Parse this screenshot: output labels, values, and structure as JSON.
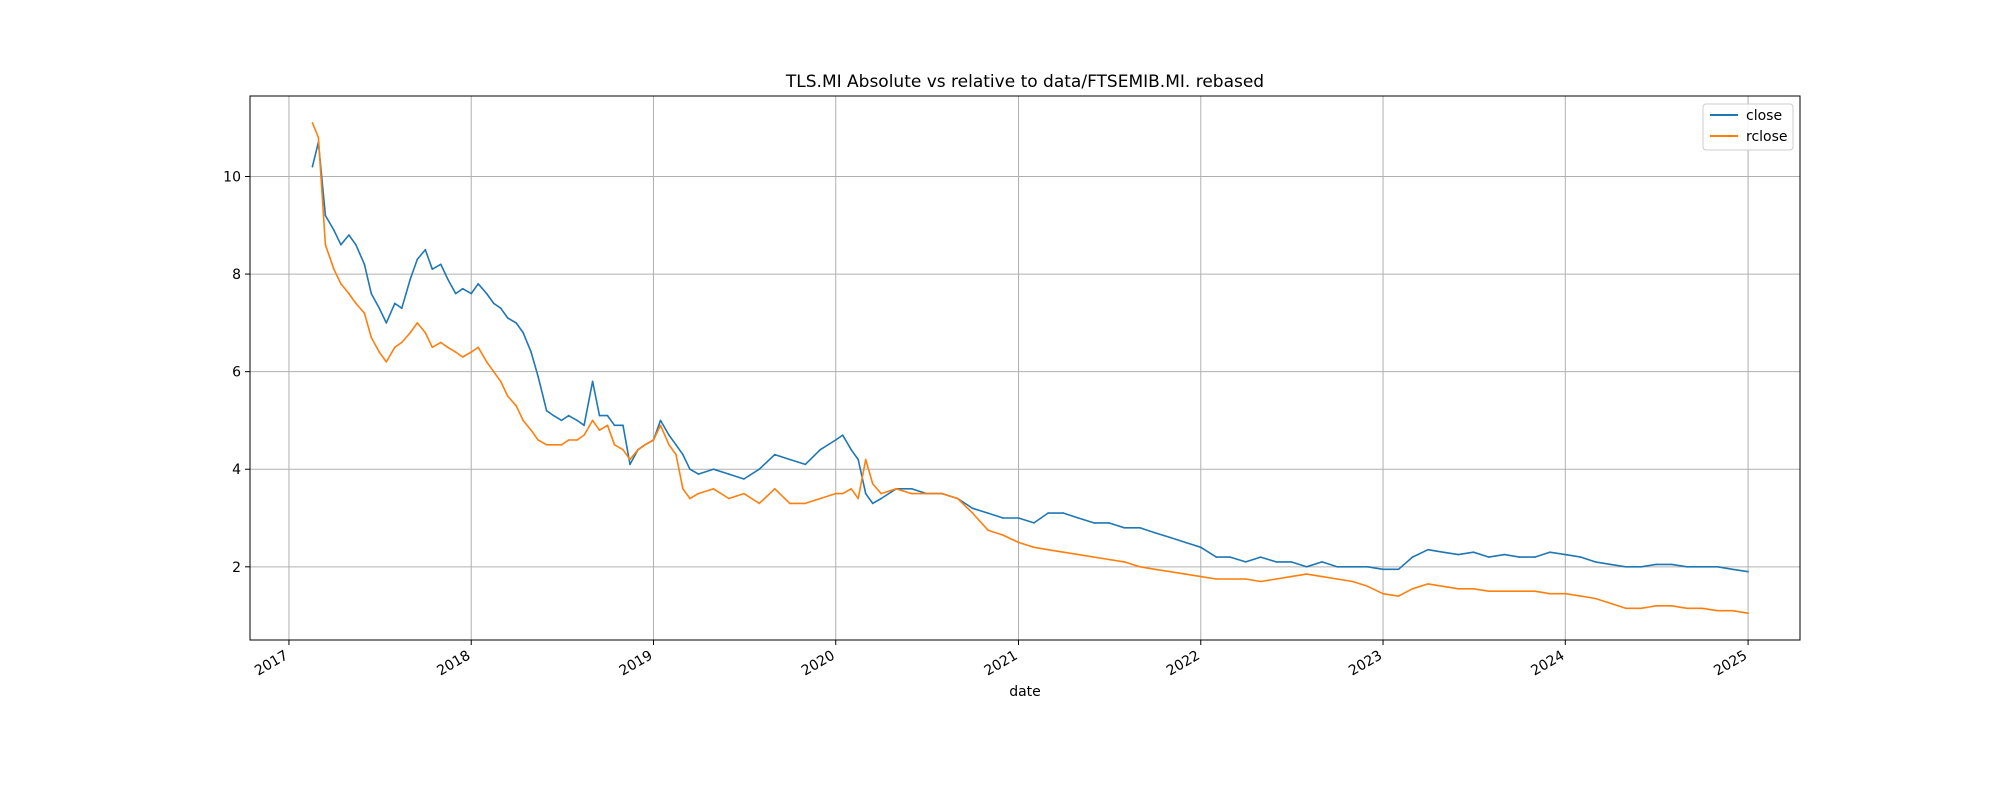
{
  "chart_data": {
    "type": "line",
    "title": "TLS.MI Absolute vs relative to data/FTSEMIB.MI. rebased",
    "xlabel": "date",
    "ylabel": "",
    "xlim": [
      "2016-10-15",
      "2025-04-15"
    ],
    "ylim": [
      0.5,
      11.65
    ],
    "grid": true,
    "legend_position": "top-right",
    "x_ticks": [
      "2017",
      "2018",
      "2019",
      "2020",
      "2021",
      "2022",
      "2023",
      "2024",
      "2025"
    ],
    "y_ticks": [
      "2",
      "4",
      "6",
      "8",
      "10"
    ],
    "y_tick_values": [
      2,
      4,
      6,
      8,
      10
    ],
    "x": [
      "2017-02-17",
      "2017-03-01",
      "2017-03-15",
      "2017-04-01",
      "2017-04-15",
      "2017-05-01",
      "2017-05-15",
      "2017-06-01",
      "2017-06-15",
      "2017-07-01",
      "2017-07-15",
      "2017-08-01",
      "2017-08-15",
      "2017-09-01",
      "2017-09-15",
      "2017-10-01",
      "2017-10-15",
      "2017-11-01",
      "2017-11-15",
      "2017-12-01",
      "2017-12-15",
      "2018-01-01",
      "2018-01-15",
      "2018-02-01",
      "2018-02-15",
      "2018-03-01",
      "2018-03-15",
      "2018-04-01",
      "2018-04-15",
      "2018-05-01",
      "2018-05-15",
      "2018-06-01",
      "2018-06-15",
      "2018-07-01",
      "2018-07-15",
      "2018-08-01",
      "2018-08-15",
      "2018-09-01",
      "2018-09-15",
      "2018-10-01",
      "2018-10-15",
      "2018-11-01",
      "2018-11-15",
      "2018-12-01",
      "2018-12-15",
      "2019-01-01",
      "2019-01-15",
      "2019-02-01",
      "2019-02-15",
      "2019-03-01",
      "2019-03-15",
      "2019-04-01",
      "2019-05-01",
      "2019-06-01",
      "2019-07-01",
      "2019-08-01",
      "2019-09-01",
      "2019-10-01",
      "2019-11-01",
      "2019-12-01",
      "2020-01-01",
      "2020-01-15",
      "2020-02-01",
      "2020-02-15",
      "2020-03-01",
      "2020-03-15",
      "2020-04-01",
      "2020-05-01",
      "2020-06-01",
      "2020-07-01",
      "2020-08-01",
      "2020-09-01",
      "2020-10-01",
      "2020-11-01",
      "2020-12-01",
      "2021-01-01",
      "2021-02-01",
      "2021-03-01",
      "2021-04-01",
      "2021-05-01",
      "2021-06-01",
      "2021-07-01",
      "2021-08-01",
      "2021-09-01",
      "2021-10-01",
      "2021-11-01",
      "2021-12-01",
      "2022-01-01",
      "2022-02-01",
      "2022-03-01",
      "2022-04-01",
      "2022-05-01",
      "2022-06-01",
      "2022-07-01",
      "2022-08-01",
      "2022-09-01",
      "2022-10-01",
      "2022-11-01",
      "2022-12-01",
      "2023-01-01",
      "2023-02-01",
      "2023-03-01",
      "2023-04-01",
      "2023-05-01",
      "2023-06-01",
      "2023-07-01",
      "2023-08-01",
      "2023-09-01",
      "2023-10-01",
      "2023-11-01",
      "2023-12-01",
      "2024-01-01",
      "2024-02-01",
      "2024-03-01",
      "2024-04-01",
      "2024-05-01",
      "2024-06-01",
      "2024-07-01",
      "2024-08-01",
      "2024-09-01",
      "2024-10-01",
      "2024-11-01",
      "2024-12-01",
      "2025-01-01"
    ],
    "series": [
      {
        "name": "close",
        "color": "#1f77b4",
        "values": [
          10.2,
          10.7,
          9.2,
          8.9,
          8.6,
          8.8,
          8.6,
          8.2,
          7.6,
          7.3,
          7.0,
          7.4,
          7.3,
          7.9,
          8.3,
          8.5,
          8.1,
          8.2,
          7.9,
          7.6,
          7.7,
          7.6,
          7.8,
          7.6,
          7.4,
          7.3,
          7.1,
          7.0,
          6.8,
          6.4,
          5.9,
          5.2,
          5.1,
          5.0,
          5.1,
          5.0,
          4.9,
          5.8,
          5.1,
          5.1,
          4.9,
          4.9,
          4.1,
          4.4,
          4.5,
          4.6,
          5.0,
          4.7,
          4.5,
          4.3,
          4.0,
          3.9,
          4.0,
          3.9,
          3.8,
          4.0,
          4.3,
          4.2,
          4.1,
          4.4,
          4.6,
          4.7,
          4.4,
          4.2,
          3.5,
          3.3,
          3.4,
          3.6,
          3.6,
          3.5,
          3.5,
          3.4,
          3.2,
          3.1,
          3.0,
          3.0,
          2.9,
          3.1,
          3.1,
          3.0,
          2.9,
          2.9,
          2.8,
          2.8,
          2.7,
          2.6,
          2.5,
          2.4,
          2.2,
          2.2,
          2.1,
          2.2,
          2.1,
          2.1,
          2.0,
          2.1,
          2.0,
          2.0,
          2.0,
          1.95,
          1.95,
          2.2,
          2.35,
          2.3,
          2.25,
          2.3,
          2.2,
          2.25,
          2.2,
          2.2,
          2.3,
          2.25,
          2.2,
          2.1,
          2.05,
          2.0,
          2.0,
          2.05,
          2.05,
          2.0,
          2.0,
          2.0,
          1.95,
          1.9
        ]
      },
      {
        "name": "rclose",
        "color": "#ff7f0e",
        "values": [
          11.1,
          10.8,
          8.6,
          8.1,
          7.8,
          7.6,
          7.4,
          7.2,
          6.7,
          6.4,
          6.2,
          6.5,
          6.6,
          6.8,
          7.0,
          6.8,
          6.5,
          6.6,
          6.5,
          6.4,
          6.3,
          6.4,
          6.5,
          6.2,
          6.0,
          5.8,
          5.5,
          5.3,
          5.0,
          4.8,
          4.6,
          4.5,
          4.5,
          4.5,
          4.6,
          4.6,
          4.7,
          5.0,
          4.8,
          4.9,
          4.5,
          4.4,
          4.2,
          4.4,
          4.5,
          4.6,
          4.9,
          4.5,
          4.3,
          3.6,
          3.4,
          3.5,
          3.6,
          3.4,
          3.5,
          3.3,
          3.6,
          3.3,
          3.3,
          3.4,
          3.5,
          3.5,
          3.6,
          3.4,
          4.2,
          3.7,
          3.5,
          3.6,
          3.5,
          3.5,
          3.5,
          3.4,
          3.1,
          2.75,
          2.65,
          2.5,
          2.4,
          2.35,
          2.3,
          2.25,
          2.2,
          2.15,
          2.1,
          2.0,
          1.95,
          1.9,
          1.85,
          1.8,
          1.75,
          1.75,
          1.75,
          1.7,
          1.75,
          1.8,
          1.85,
          1.8,
          1.75,
          1.7,
          1.6,
          1.45,
          1.4,
          1.55,
          1.65,
          1.6,
          1.55,
          1.55,
          1.5,
          1.5,
          1.5,
          1.5,
          1.45,
          1.45,
          1.4,
          1.35,
          1.25,
          1.15,
          1.15,
          1.2,
          1.2,
          1.15,
          1.15,
          1.1,
          1.1,
          1.05
        ]
      }
    ]
  }
}
